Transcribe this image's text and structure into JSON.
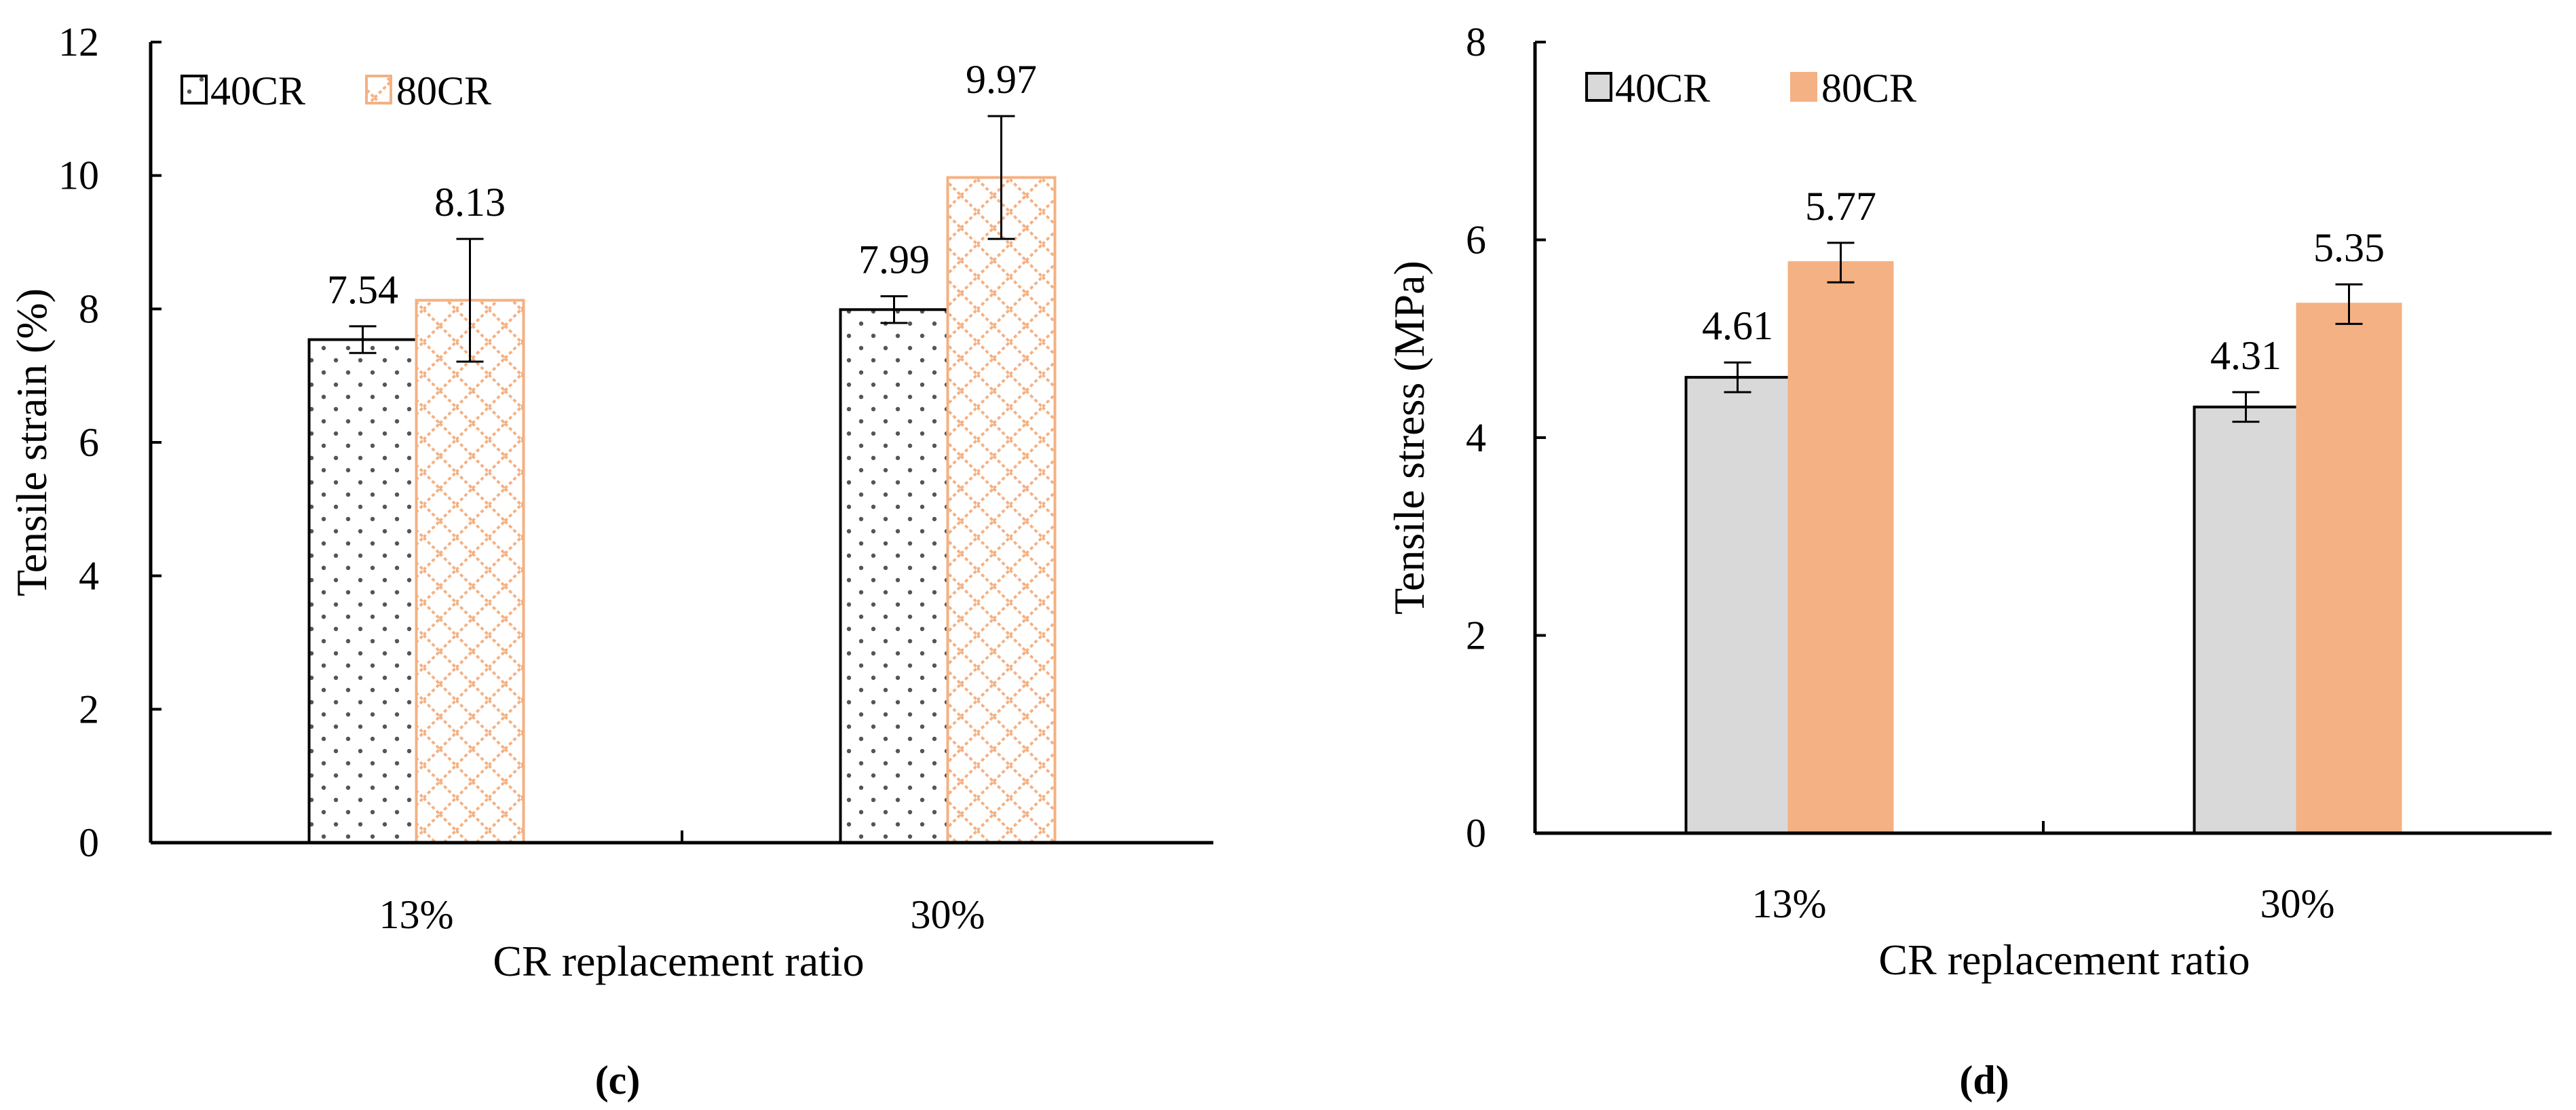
{
  "chart_data": [
    {
      "type": "bar",
      "panel_label": "c",
      "categories": [
        "13%",
        "30%"
      ],
      "series": [
        {
          "name": "40CR",
          "values": [
            7.54,
            7.99
          ],
          "errors": [
            0.2,
            0.2
          ],
          "data_labels": [
            "7.54",
            "7.99"
          ],
          "fill": "dots"
        },
        {
          "name": "80CR",
          "values": [
            8.13,
            9.97
          ],
          "errors": [
            0.92,
            0.92
          ],
          "data_labels": [
            "8.13",
            "9.97"
          ],
          "fill": "lattice"
        }
      ],
      "title": "",
      "xlabel": "CR replacement ratio",
      "ylabel": "Tensile strain (%)",
      "ylim": [
        0,
        12
      ],
      "yticks": [
        "0",
        "2",
        "4",
        "6",
        "8",
        "10",
        "12"
      ],
      "grid": false,
      "legend": "top-left",
      "colors": {
        "series1_edge": "#000000",
        "series2_edge": "#f4b183",
        "pattern_dot": "#555555"
      }
    },
    {
      "type": "bar",
      "panel_label": "d",
      "categories": [
        "13%",
        "30%"
      ],
      "series": [
        {
          "name": "40CR",
          "values": [
            4.61,
            4.31
          ],
          "errors": [
            0.15,
            0.15
          ],
          "data_labels": [
            "4.61",
            "4.31"
          ],
          "fill": "solid"
        },
        {
          "name": "80CR",
          "values": [
            5.77,
            5.35
          ],
          "errors": [
            0.2,
            0.2
          ],
          "data_labels": [
            "5.77",
            "5.35"
          ],
          "fill": "solid"
        }
      ],
      "title": "",
      "xlabel": "CR replacement ratio",
      "ylabel": "Tensile stress (MPa)",
      "ylim": [
        0,
        8
      ],
      "yticks": [
        "0",
        "2",
        "4",
        "6",
        "8"
      ],
      "grid": false,
      "legend": "top-left",
      "colors": {
        "series1_fill": "#d9d9d9",
        "series2_fill": "#f4b183",
        "edge": "#000000"
      }
    }
  ]
}
